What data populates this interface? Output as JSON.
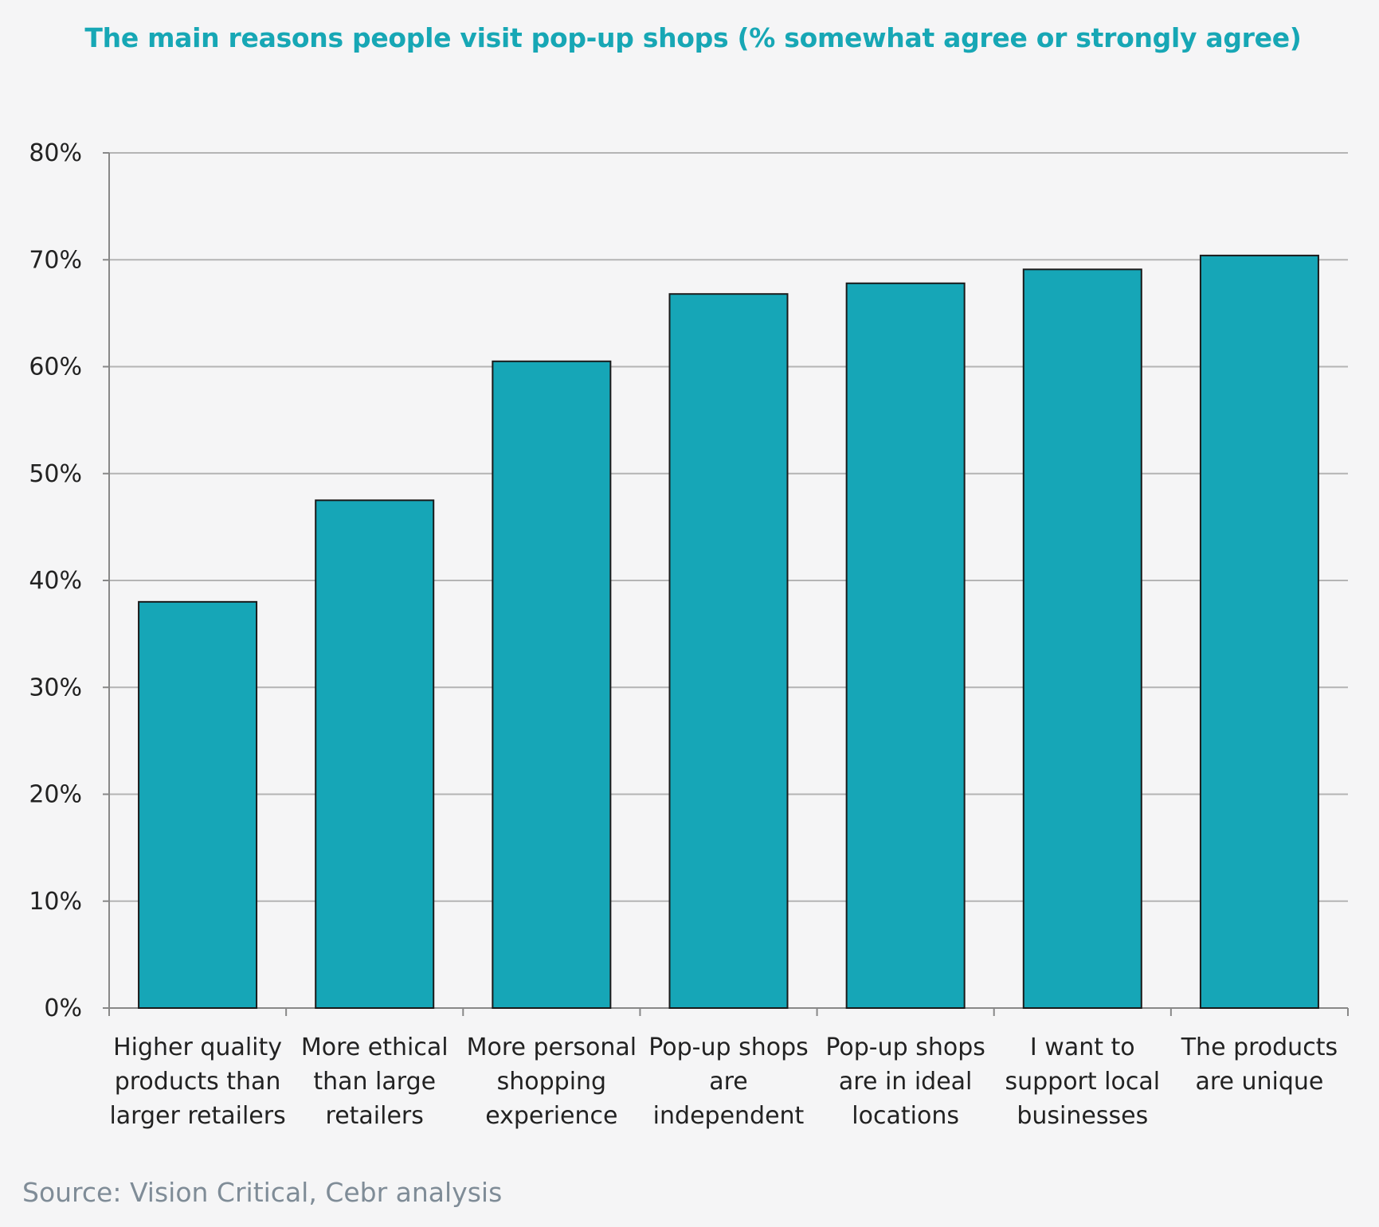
{
  "chart_data": {
    "type": "bar",
    "title": "The main reasons people visit pop-up shops (% somewhat agree or strongly agree)",
    "categories": [
      [
        "Higher quality",
        "products than",
        "larger retailers"
      ],
      [
        "More ethical",
        "than large",
        "retailers"
      ],
      [
        "More personal",
        "shopping",
        "experience"
      ],
      [
        "Pop-up shops",
        "are",
        "independent"
      ],
      [
        "Pop-up shops",
        "are in ideal",
        "locations"
      ],
      [
        "I want to",
        "support local",
        "businesses"
      ],
      [
        "The products",
        "are unique"
      ]
    ],
    "values": [
      38,
      47.5,
      60.5,
      66.8,
      67.8,
      69.1,
      70.4
    ],
    "ylim": [
      0,
      80
    ],
    "yticks": [
      "0%",
      "10%",
      "20%",
      "30%",
      "40%",
      "50%",
      "60%",
      "70%",
      "80%"
    ],
    "ytick_values": [
      0,
      10,
      20,
      30,
      40,
      50,
      60,
      70,
      80
    ],
    "grid": true,
    "legend": "none",
    "bar_color": "#16a6b7",
    "bar_edge_color": "#1a1a1a"
  },
  "source": "Source: Vision Critical, Cebr analysis"
}
